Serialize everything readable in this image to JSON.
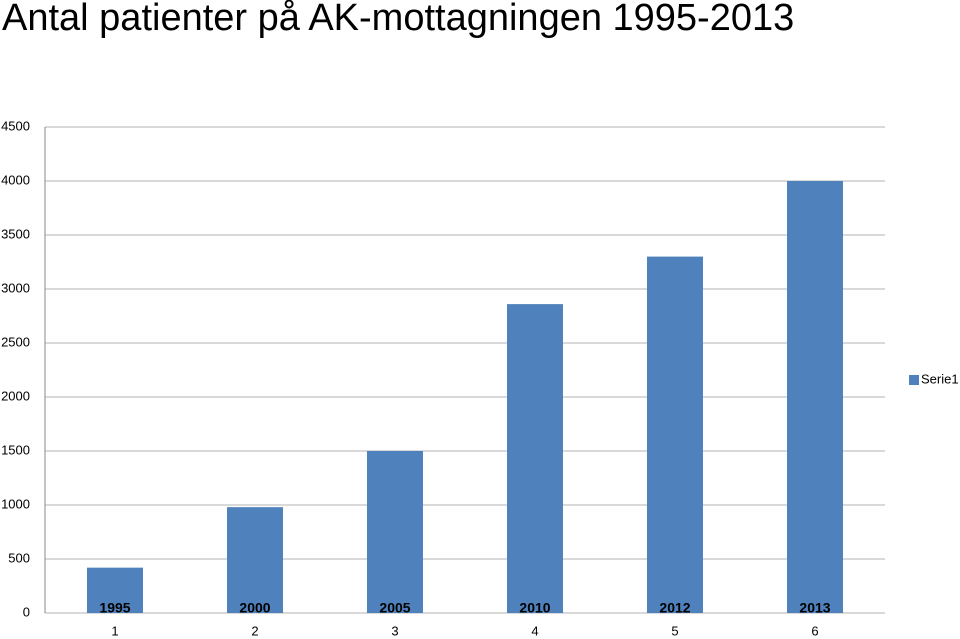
{
  "chart_data": {
    "type": "bar",
    "title": "Antal patienter på AK-mottagningen 1995-2013",
    "categories": [
      "1",
      "2",
      "3",
      "4",
      "5",
      "6"
    ],
    "annotations": [
      "1995",
      "2000",
      "2005",
      "2010",
      "2012",
      "2013"
    ],
    "series": [
      {
        "name": "Serie1",
        "color": "#4f81bd",
        "values": [
          420,
          980,
          1500,
          2860,
          3300,
          4000
        ]
      }
    ],
    "ylim": [
      0,
      4500
    ],
    "yticks": [
      0,
      500,
      1000,
      1500,
      2000,
      2500,
      3000,
      3500,
      4000,
      4500
    ],
    "grid": true,
    "legend": "right"
  }
}
